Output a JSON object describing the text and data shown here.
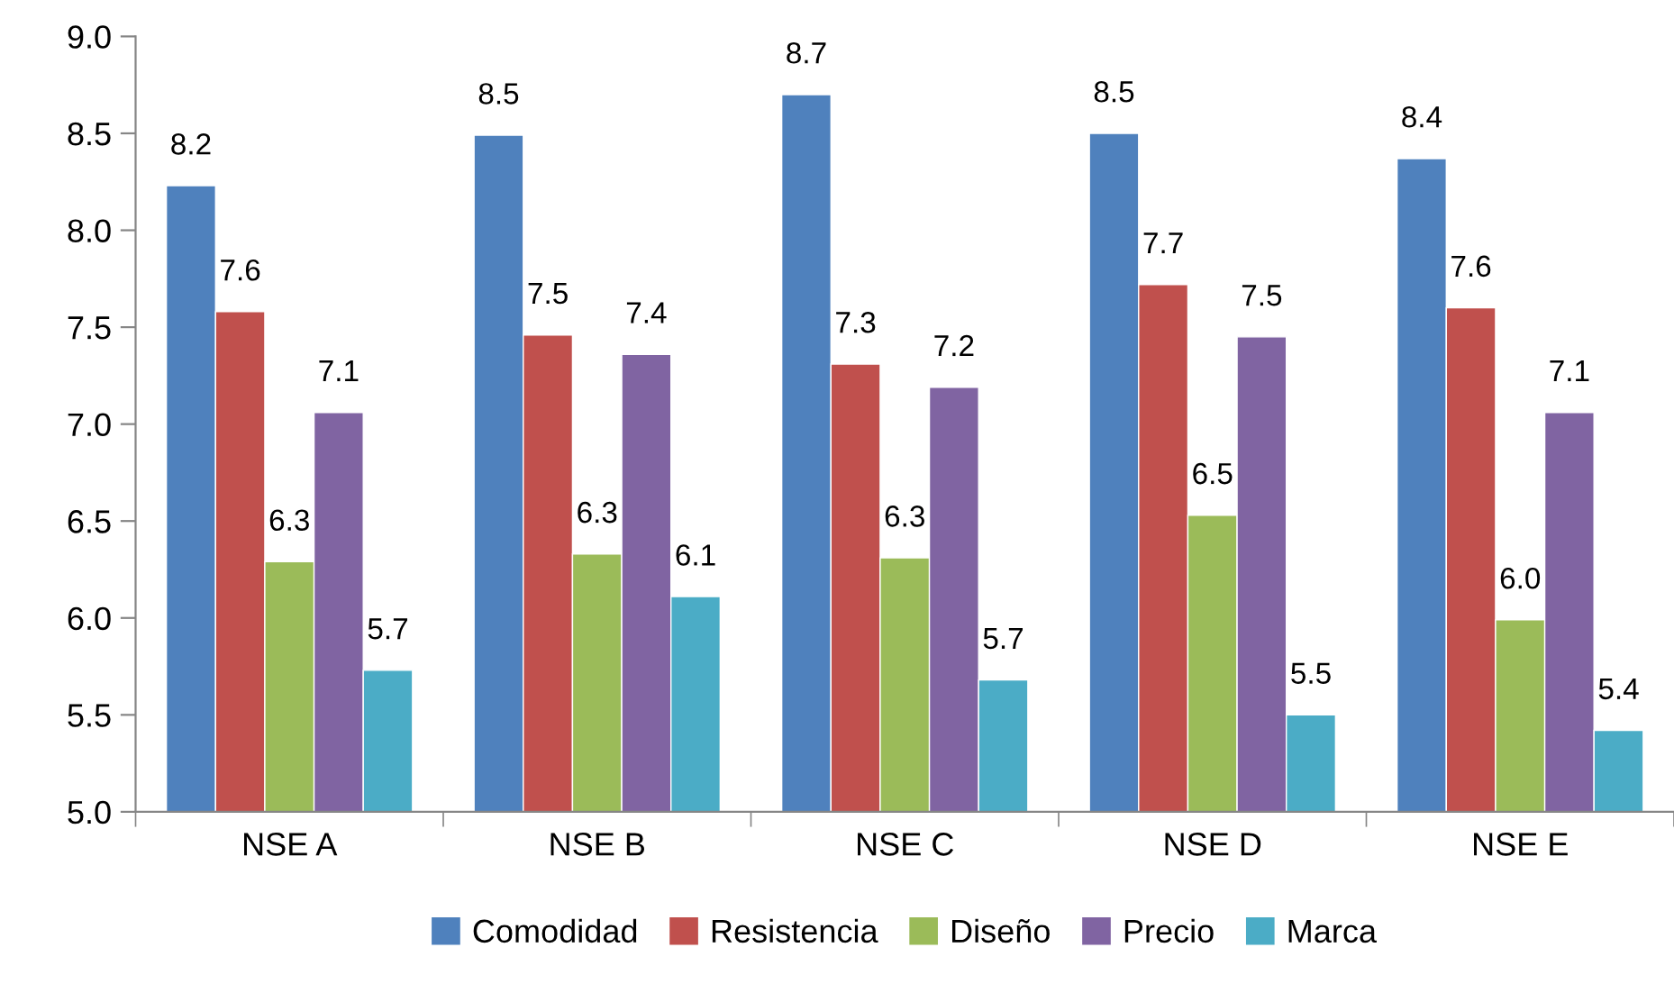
{
  "chart_data": {
    "type": "bar",
    "categories": [
      "NSE A",
      "NSE B",
      "NSE C",
      "NSE D",
      "NSE E"
    ],
    "series": [
      {
        "name": "Comodidad",
        "color": "#4f81bd",
        "values": [
          8.23,
          8.49,
          8.7,
          8.5,
          8.37
        ],
        "value_labels": [
          "8.2",
          "8.5",
          "8.7",
          "8.5",
          "8.4"
        ]
      },
      {
        "name": "Resistencia",
        "color": "#c0504d",
        "values": [
          7.58,
          7.46,
          7.31,
          7.72,
          7.6
        ],
        "value_labels": [
          "7.6",
          "7.5",
          "7.3",
          "7.7",
          "7.6"
        ]
      },
      {
        "name": "Diseño",
        "color": "#9bbb59",
        "values": [
          6.29,
          6.33,
          6.31,
          6.53,
          5.99
        ],
        "value_labels": [
          "6.3",
          "6.3",
          "6.3",
          "6.5",
          "6.0"
        ]
      },
      {
        "name": "Precio",
        "color": "#8064a2",
        "values": [
          7.06,
          7.36,
          7.19,
          7.45,
          7.06
        ],
        "value_labels": [
          "7.1",
          "7.4",
          "7.2",
          "7.5",
          "7.1"
        ]
      },
      {
        "name": "Marca",
        "color": "#4bacc6",
        "values": [
          5.73,
          6.11,
          5.68,
          5.5,
          5.42
        ],
        "value_labels": [
          "5.7",
          "6.1",
          "5.7",
          "5.5",
          "5.4"
        ]
      }
    ],
    "ylim": [
      5.0,
      9.0
    ],
    "yticks": [
      {
        "value": 5.0,
        "label": "5.0"
      },
      {
        "value": 5.5,
        "label": "5.5"
      },
      {
        "value": 6.0,
        "label": "6.0"
      },
      {
        "value": 6.5,
        "label": "6.5"
      },
      {
        "value": 7.0,
        "label": "7.0"
      },
      {
        "value": 7.5,
        "label": "7.5"
      },
      {
        "value": 8.0,
        "label": "8.0"
      },
      {
        "value": 8.5,
        "label": "8.5"
      },
      {
        "value": 9.0,
        "label": "9.0"
      }
    ],
    "grid": false,
    "legend": "bottom"
  }
}
